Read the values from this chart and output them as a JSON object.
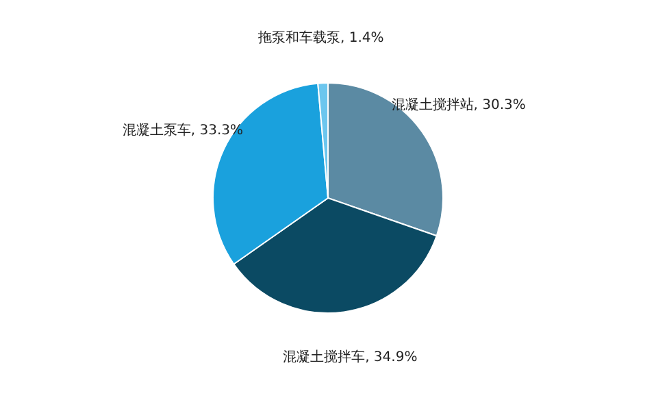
{
  "chart_data": {
    "type": "pie",
    "categories": [
      "混凝土搅拌站",
      "混凝土搅拌车",
      "混凝土泵车",
      "拖泵和车载泵"
    ],
    "values": [
      30.3,
      34.9,
      33.3,
      1.4
    ],
    "value_labels": [
      "30.3%",
      "34.9%",
      "33.3%",
      "1.4%"
    ],
    "colors": [
      "#5b8aa3",
      "#0b4a63",
      "#1aa1dd",
      "#6cc6ee"
    ],
    "legend": false
  }
}
